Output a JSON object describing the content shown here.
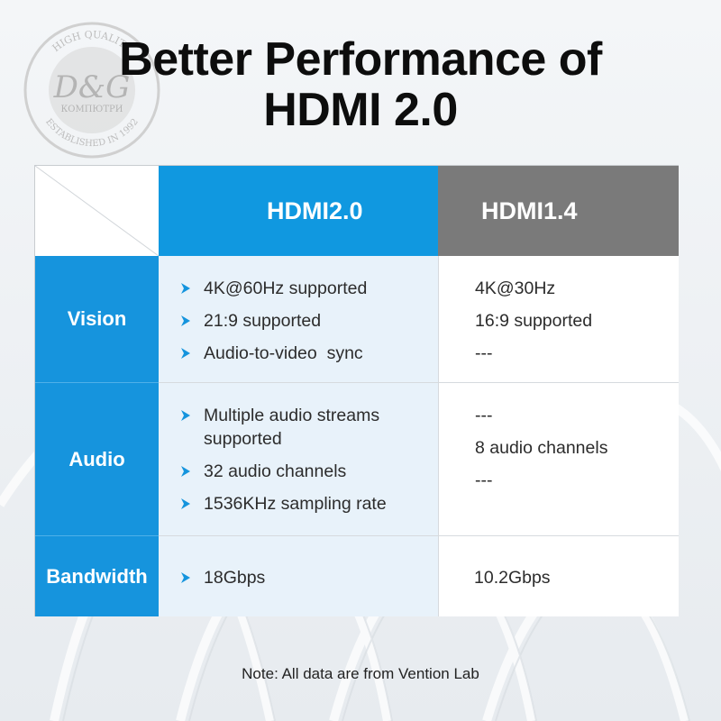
{
  "title": {
    "line1": "Better Performance of",
    "line2": "HDMI 2.0"
  },
  "watermark": {
    "top_text": "HIGH QUALITY",
    "logo": "D&G",
    "brand": "КОМПЮТРИ",
    "bottom_text": "ESTABLISHED IN 1992"
  },
  "columns": {
    "hdmi20": "HDMI2.0",
    "hdmi14": "HDMI1.4"
  },
  "rows": [
    {
      "label": "Vision",
      "hdmi20": [
        "4K@60Hz supported",
        "21:9 supported",
        "Audio-to-video  sync"
      ],
      "hdmi14": [
        "4K@30Hz",
        "16:9 supported",
        "---"
      ]
    },
    {
      "label": "Audio",
      "hdmi20": [
        "Multiple audio streams supported",
        "32 audio channels",
        "1536KHz sampling rate"
      ],
      "hdmi14": [
        "---",
        "8 audio channels",
        "---"
      ]
    },
    {
      "label": "Bandwidth",
      "hdmi20": [
        "18Gbps"
      ],
      "hdmi14": [
        "10.2Gbps"
      ]
    }
  ],
  "note": "Note: All data are from Vention Lab",
  "colors": {
    "accent_blue": "#1098e0",
    "header_gray": "#7a7a7a",
    "cell_tint": "#e8f2fa"
  },
  "icons": {
    "bullet": "chevron-right-icon"
  }
}
